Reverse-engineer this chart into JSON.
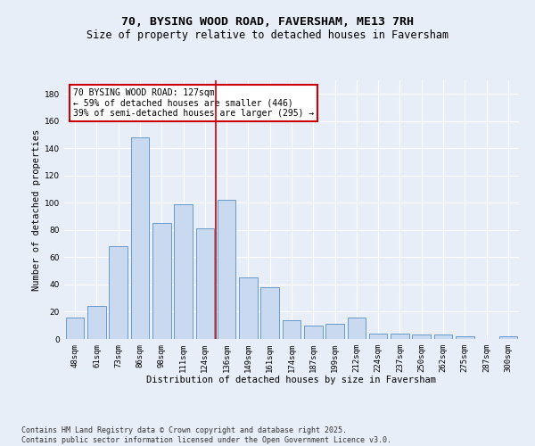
{
  "title": "70, BYSING WOOD ROAD, FAVERSHAM, ME13 7RH",
  "subtitle": "Size of property relative to detached houses in Faversham",
  "xlabel": "Distribution of detached houses by size in Faversham",
  "ylabel": "Number of detached properties",
  "categories": [
    "48sqm",
    "61sqm",
    "73sqm",
    "86sqm",
    "98sqm",
    "111sqm",
    "124sqm",
    "136sqm",
    "149sqm",
    "161sqm",
    "174sqm",
    "187sqm",
    "199sqm",
    "212sqm",
    "224sqm",
    "237sqm",
    "250sqm",
    "262sqm",
    "275sqm",
    "287sqm",
    "300sqm"
  ],
  "values": [
    16,
    24,
    68,
    148,
    85,
    99,
    81,
    102,
    45,
    38,
    14,
    10,
    11,
    16,
    4,
    4,
    3,
    3,
    2,
    0,
    2
  ],
  "bar_color": "#c9d9f0",
  "bar_edge_color": "#6699cc",
  "vline_color": "#cc0000",
  "vline_x": 6.5,
  "annotation_text": "70 BYSING WOOD ROAD: 127sqm\n← 59% of detached houses are smaller (446)\n39% of semi-detached houses are larger (295) →",
  "annotation_box_color": "#ffffff",
  "annotation_box_edge": "#cc0000",
  "ylim": [
    0,
    190
  ],
  "yticks": [
    0,
    20,
    40,
    60,
    80,
    100,
    120,
    140,
    160,
    180
  ],
  "background_color": "#e8eef8",
  "grid_color": "#ffffff",
  "footer_line1": "Contains HM Land Registry data © Crown copyright and database right 2025.",
  "footer_line2": "Contains public sector information licensed under the Open Government Licence v3.0.",
  "title_fontsize": 9.5,
  "subtitle_fontsize": 8.5,
  "axis_label_fontsize": 7.5,
  "tick_fontsize": 6.5,
  "annotation_fontsize": 7,
  "footer_fontsize": 6
}
